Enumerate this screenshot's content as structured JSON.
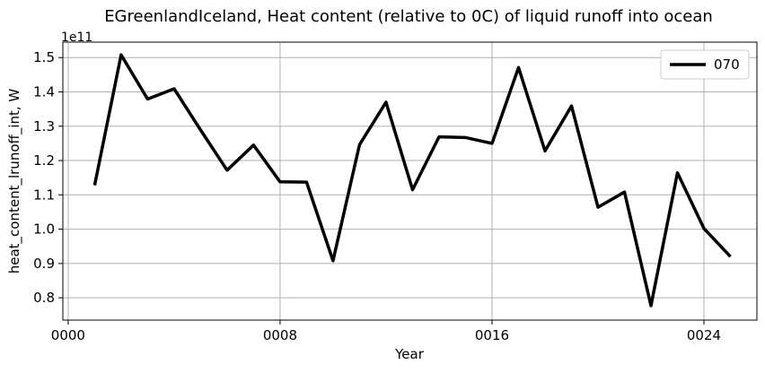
{
  "chart_data": {
    "type": "line",
    "title": "EGreenlandIceland, Heat content (relative to 0C) of liquid runoff into ocean",
    "xlabel": "Year",
    "ylabel": "heat_content_lrunoff_int, W",
    "y_offset_label": "1e11",
    "xlim": [
      -0.2,
      26.0
    ],
    "ylim": [
      0.735,
      1.545
    ],
    "x_ticks": [
      0,
      8,
      16,
      24
    ],
    "x_tick_labels": [
      "0000",
      "0008",
      "0016",
      "0024"
    ],
    "y_ticks": [
      0.8,
      0.9,
      1.0,
      1.1,
      1.2,
      1.3,
      1.4,
      1.5
    ],
    "y_tick_labels": [
      "0.8",
      "0.9",
      "1.0",
      "1.1",
      "1.2",
      "1.3",
      "1.4",
      "1.5"
    ],
    "grid": true,
    "legend_position": "top-right",
    "series": [
      {
        "name": "070",
        "color": "#000000",
        "x": [
          1,
          2,
          3,
          4,
          5,
          6,
          7,
          8,
          9,
          10,
          11,
          12,
          13,
          14,
          15,
          16,
          17,
          18,
          19,
          20,
          21,
          22,
          23,
          24,
          25
        ],
        "values": [
          1.128,
          1.508,
          1.379,
          1.409,
          1.289,
          1.172,
          1.245,
          1.138,
          1.137,
          0.908,
          1.246,
          1.37,
          1.115,
          1.269,
          1.267,
          1.25,
          1.471,
          1.228,
          1.359,
          1.064,
          1.108,
          0.777,
          1.164,
          1.002,
          0.92
        ]
      }
    ]
  }
}
